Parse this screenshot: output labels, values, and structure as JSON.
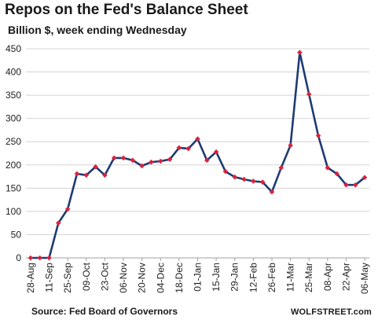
{
  "chart_data": {
    "type": "line",
    "title": "Repos on the Fed's Balance Sheet",
    "subtitle": "Billion $, week ending Wednesday",
    "ylim": [
      0,
      450
    ],
    "yticks": [
      0,
      50,
      100,
      150,
      200,
      250,
      300,
      350,
      400,
      450
    ],
    "grid": true,
    "x": [
      "28-Aug",
      "04-Sep",
      "11-Sep",
      "18-Sep",
      "25-Sep",
      "02-Oct",
      "09-Oct",
      "16-Oct",
      "23-Oct",
      "30-Oct",
      "06-Nov",
      "13-Nov",
      "20-Nov",
      "27-Nov",
      "04-Dec",
      "11-Dec",
      "18-Dec",
      "25-Dec",
      "01-Jan",
      "08-Jan",
      "15-Jan",
      "22-Jan",
      "29-Jan",
      "05-Feb",
      "12-Feb",
      "19-Feb",
      "26-Feb",
      "04-Mar",
      "11-Mar",
      "18-Mar",
      "25-Mar",
      "01-Apr",
      "08-Apr",
      "15-Apr",
      "22-Apr",
      "29-Apr",
      "06-May"
    ],
    "xtick_labels": [
      "28-Aug",
      "11-Sep",
      "25-Sep",
      "09-Oct",
      "23-Oct",
      "06-Nov",
      "20-Nov",
      "04-Dec",
      "18-Dec",
      "01-Jan",
      "15-Jan",
      "29-Jan",
      "12-Feb",
      "26-Feb",
      "11-Mar",
      "25-Mar",
      "08-Apr",
      "22-Apr",
      "06-May"
    ],
    "series": [
      {
        "color": "#1f3b73",
        "marker_color": "#d9233f",
        "values": [
          0,
          0,
          0,
          75,
          105,
          181,
          178,
          196,
          178,
          215,
          215,
          210,
          198,
          206,
          208,
          212,
          237,
          235,
          256,
          210,
          228,
          186,
          174,
          169,
          165,
          163,
          142,
          194,
          242,
          442,
          352,
          263,
          194,
          181,
          157,
          157,
          173
        ]
      }
    ]
  },
  "footer": {
    "source": "Source: Fed Board of Governors",
    "brand": "WOLFSTREET.com"
  }
}
